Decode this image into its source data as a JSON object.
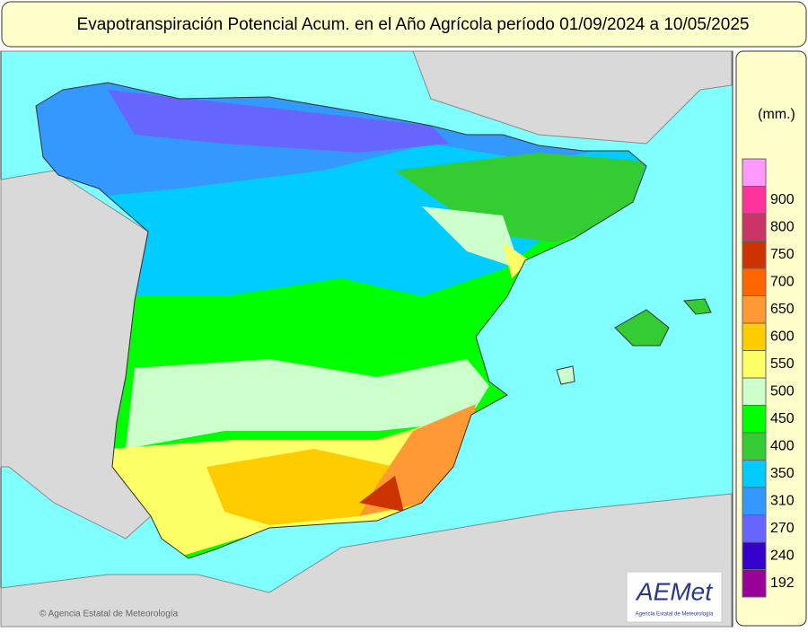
{
  "header": {
    "title": "Evapotranspiración Potencial Acum. en el Año Agrícola período 01/09/2024 a 10/05/2025"
  },
  "legend": {
    "unit": "(mm.)",
    "items": [
      {
        "color": "#ff99ff"
      },
      {
        "color": "#ff3399",
        "label": 900
      },
      {
        "color": "#cc3366",
        "label": 800
      },
      {
        "color": "#cc3300",
        "label": 750
      },
      {
        "color": "#ff6600",
        "label": 700
      },
      {
        "color": "#ff9933",
        "label": 650
      },
      {
        "color": "#ffcc00",
        "label": 600
      },
      {
        "color": "#ffff66",
        "label": 550
      },
      {
        "color": "#ccffcc",
        "label": 500
      },
      {
        "color": "#00ff00",
        "label": 450
      },
      {
        "color": "#33cc33",
        "label": 400
      },
      {
        "color": "#00ccff",
        "label": 350
      },
      {
        "color": "#3399ff",
        "label": 310
      },
      {
        "color": "#6666ff",
        "label": 270
      },
      {
        "color": "#3300cc",
        "label": 240
      },
      {
        "color": "#990099",
        "label": 192
      }
    ]
  },
  "footer": {
    "credit": "© Agencia Estatal de Meteorología",
    "logo": "AEMet",
    "logo_caption": "Agencia Estatal de Meteorología"
  }
}
